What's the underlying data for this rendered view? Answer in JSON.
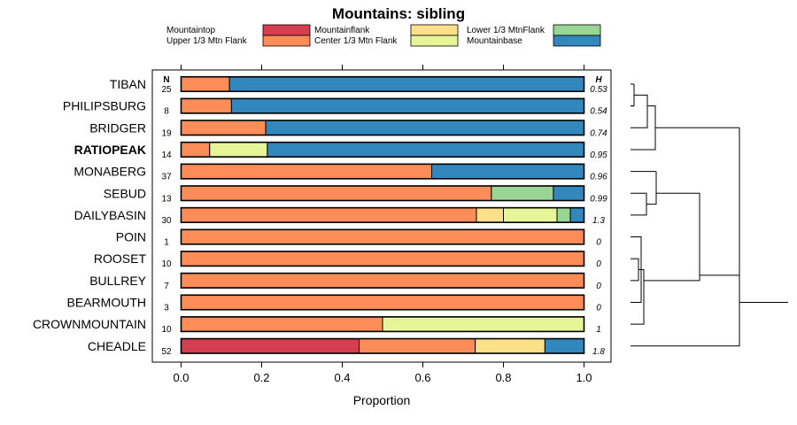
{
  "chart_data": {
    "type": "bar",
    "orientation": "horizontal",
    "stacked": true,
    "title": "Mountains: sibling",
    "xlabel": "Proportion",
    "ylabel": "",
    "xlim": [
      0,
      1
    ],
    "xticks": [
      "0.0",
      "0.2",
      "0.4",
      "0.6",
      "0.8",
      "1.0"
    ],
    "n_header": "N",
    "h_header": "H",
    "legend_position": "top",
    "series_meta": [
      {
        "name": "Mountaintop",
        "color": "#d53e4f"
      },
      {
        "name": "Upper 1/3 Mtn Flank",
        "color": "#fc8d59"
      },
      {
        "name": "Mountainflank",
        "color": "#fee08b"
      },
      {
        "name": "Center 1/3 Mtn Flank",
        "color": "#e6f598"
      },
      {
        "name": "Lower 1/3 MtnFlank",
        "color": "#99d594"
      },
      {
        "name": "Mountainbase",
        "color": "#3288bd"
      }
    ],
    "categories": [
      "TIBAN",
      "PHILIPSBURG",
      "BRIDGER",
      "RATIOPEAK",
      "MONABERG",
      "SEBUD",
      "DAILYBASIN",
      "POIN",
      "ROOSET",
      "BULLREY",
      "BEARMOUTH",
      "CROWNMOUNTAIN",
      "CHEADLE"
    ],
    "highlighted_category": "RATIOPEAK",
    "n_values": [
      "25",
      "8",
      "19",
      "14",
      "37",
      "13",
      "30",
      "1",
      "10",
      "7",
      "3",
      "10",
      "52"
    ],
    "h_values": [
      "0.53",
      "0.54",
      "0.74",
      "0.95",
      "0.96",
      "0.99",
      "1.3",
      "0",
      "0",
      "0",
      "0",
      "1",
      "1.8"
    ],
    "series": [
      {
        "name": "Mountaintop",
        "values": [
          0,
          0,
          0,
          0,
          0,
          0,
          0,
          0,
          0,
          0,
          0,
          0,
          0.442
        ]
      },
      {
        "name": "Upper 1/3 Mtn Flank",
        "values": [
          0.12,
          0.125,
          0.21,
          0.071,
          0.622,
          0.77,
          0.733,
          1,
          1,
          1,
          1,
          0.5,
          0.288
        ]
      },
      {
        "name": "Mountainflank",
        "values": [
          0,
          0,
          0,
          0,
          0,
          0,
          0.067,
          0,
          0,
          0,
          0,
          0,
          0.173
        ]
      },
      {
        "name": "Center 1/3 Mtn Flank",
        "values": [
          0,
          0,
          0,
          0.143,
          0,
          0,
          0.133,
          0,
          0,
          0,
          0,
          0.5,
          0
        ]
      },
      {
        "name": "Lower 1/3 MtnFlank",
        "values": [
          0,
          0,
          0,
          0,
          0,
          0.154,
          0.033,
          0,
          0,
          0,
          0,
          0,
          0
        ]
      },
      {
        "name": "Mountainbase",
        "values": [
          0.88,
          0.875,
          0.79,
          0.786,
          0.378,
          0.076,
          0.034,
          0,
          0,
          0,
          0,
          0,
          0.097
        ]
      }
    ]
  }
}
